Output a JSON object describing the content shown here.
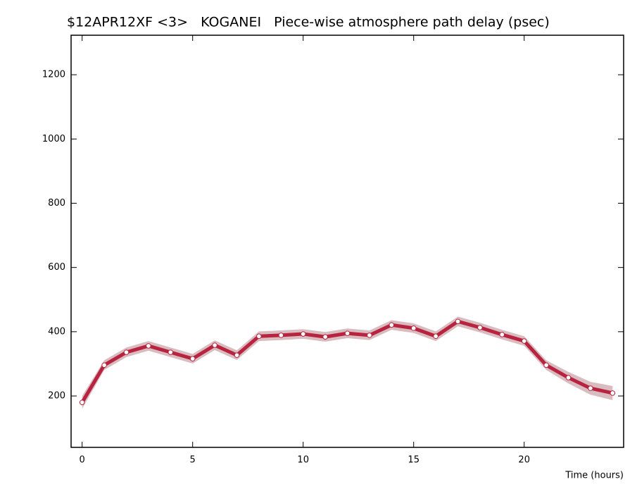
{
  "chart_data": {
    "type": "line",
    "title": "$12APR12XF <3>   KOGANEI   Piece-wise atmosphere path delay (psec)",
    "xlabel": "Time (hours)",
    "x": [
      0,
      1,
      2,
      3,
      4,
      5,
      6,
      7,
      8,
      9,
      10,
      11,
      12,
      13,
      14,
      15,
      16,
      17,
      18,
      19,
      20,
      21,
      22,
      23,
      24
    ],
    "values": [
      180,
      296,
      336,
      356,
      336,
      316,
      358,
      327,
      386,
      389,
      393,
      384,
      395,
      389,
      421,
      411,
      386,
      432,
      413,
      391,
      371,
      296,
      257,
      224,
      209
    ],
    "errors": [
      20,
      15,
      15,
      15,
      15,
      15,
      15,
      15,
      15,
      15,
      15,
      15,
      15,
      15,
      15,
      15,
      15,
      15,
      15,
      15,
      15,
      15,
      18,
      20,
      22
    ],
    "color": "#b8243f",
    "band_color": "#d9bcc0",
    "xlim": [
      -0.5,
      24.5
    ],
    "xticks": [
      0,
      5,
      10,
      15,
      20
    ],
    "ylim": [
      40,
      1323
    ],
    "yticks": [
      200,
      400,
      600,
      800,
      1000,
      1200
    ]
  }
}
